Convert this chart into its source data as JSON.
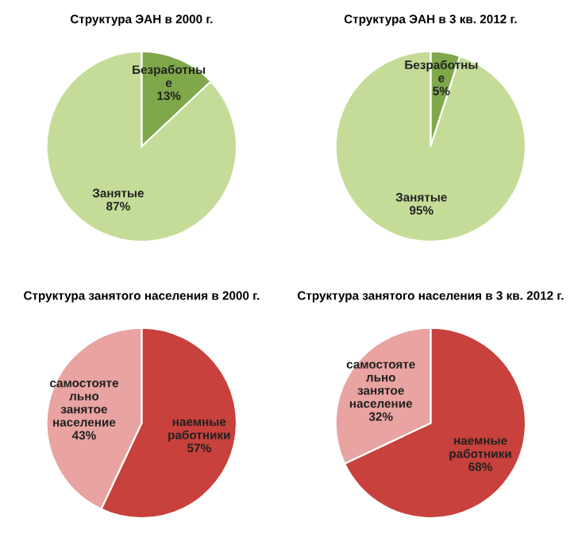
{
  "chart_data": [
    {
      "type": "pie",
      "title": "Структура ЭАН в 2000 г.",
      "categories": [
        "Безработны\nе",
        "Занятые"
      ],
      "values": [
        13,
        87
      ],
      "value_labels": [
        "13%",
        "87%"
      ],
      "colors": [
        "#7ea84a",
        "#c4dc98"
      ]
    },
    {
      "type": "pie",
      "title": "Структура ЭАН в 3 кв. 2012 г.",
      "categories": [
        "Безработны\nе",
        "Занятые"
      ],
      "values": [
        5,
        95
      ],
      "value_labels": [
        "5%",
        "95%"
      ],
      "colors": [
        "#7ea84a",
        "#c4dc98"
      ]
    },
    {
      "type": "pie",
      "title": "Структура занятого населения в 2000 г.",
      "categories": [
        "наемные\nработники",
        "самостояте\nльно\nзанятое\nнаселение"
      ],
      "values": [
        57,
        43
      ],
      "value_labels": [
        "57%",
        "43%"
      ],
      "colors": [
        "#c8413c",
        "#e9a3a1"
      ]
    },
    {
      "type": "pie",
      "title": "Структура занятого населения в 3 кв. 2012 г.",
      "categories": [
        "наемные\nработники",
        "самостояте\nльно\nзанятое\nнаселение"
      ],
      "values": [
        68,
        32
      ],
      "value_labels": [
        "68%",
        "32%"
      ],
      "colors": [
        "#c8413c",
        "#e9a3a1"
      ]
    }
  ]
}
